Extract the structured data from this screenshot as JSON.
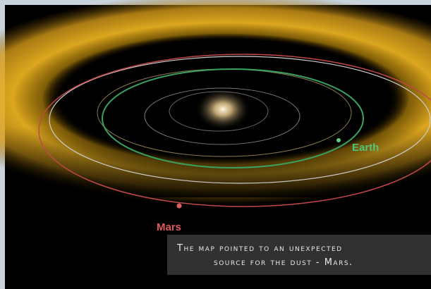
{
  "labels": {
    "earth": "Earth",
    "mars": "Mars"
  },
  "caption": {
    "lines": [
      "The map pointed to an unexpected",
      "source for the dust - Mars."
    ]
  }
}
